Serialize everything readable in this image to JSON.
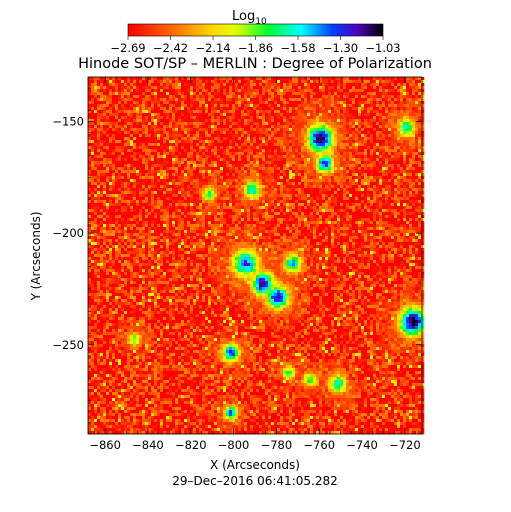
{
  "chart_data": {
    "type": "heatmap",
    "title": "Hinode SOT/SP – MERLIN : Degree of Polarization",
    "colorbar": {
      "label_main": "Log",
      "label_sub": "10",
      "tick_labels": [
        "−2.69",
        "−2.42",
        "−2.14",
        "−1.86",
        "−1.58",
        "−1.30",
        "−1.03"
      ],
      "range": [
        -2.69,
        -1.03
      ],
      "colormap": "rainbow (red → yellow → green → cyan → blue → black)"
    },
    "xlabel": "X (Arcseconds)",
    "ylabel": "Y (Arcseconds)",
    "xlim": [
      -868,
      -712
    ],
    "ylim": [
      -290,
      -130
    ],
    "x_ticks": [
      -860,
      -840,
      -820,
      -800,
      -780,
      -760,
      -740,
      -720
    ],
    "x_tick_labels": [
      "−860",
      "−840",
      "−820",
      "−800",
      "−780",
      "−760",
      "−740",
      "−720"
    ],
    "y_ticks": [
      -150,
      -200,
      -250
    ],
    "y_tick_labels": [
      "−150",
      "−200",
      "−250"
    ],
    "date_label": "29–Dec–2016  06:41:05.282",
    "background_level": -2.6,
    "features": [
      {
        "x": -760,
        "y": -157,
        "r": 6,
        "level": -1.1
      },
      {
        "x": -758,
        "y": -168,
        "r": 4,
        "level": -1.3
      },
      {
        "x": -795,
        "y": -213,
        "r": 6,
        "level": -1.35
      },
      {
        "x": -787,
        "y": -222,
        "r": 5,
        "level": -1.15
      },
      {
        "x": -780,
        "y": -228,
        "r": 5,
        "level": -1.2
      },
      {
        "x": -773,
        "y": -213,
        "r": 4,
        "level": -1.5
      },
      {
        "x": -717,
        "y": -239,
        "r": 6,
        "level": -1.05
      },
      {
        "x": -802,
        "y": -253,
        "r": 4,
        "level": -1.3
      },
      {
        "x": -792,
        "y": -180,
        "r": 4,
        "level": -1.6
      },
      {
        "x": -812,
        "y": -182,
        "r": 3,
        "level": -1.7
      },
      {
        "x": -752,
        "y": -267,
        "r": 4,
        "level": -1.6
      },
      {
        "x": -765,
        "y": -265,
        "r": 3,
        "level": -1.7
      },
      {
        "x": -802,
        "y": -280,
        "r": 3,
        "level": -1.4
      },
      {
        "x": -847,
        "y": -247,
        "r": 3,
        "level": -1.8
      },
      {
        "x": -775,
        "y": -262,
        "r": 3,
        "level": -1.7
      },
      {
        "x": -720,
        "y": -152,
        "r": 4,
        "level": -1.6
      }
    ]
  }
}
